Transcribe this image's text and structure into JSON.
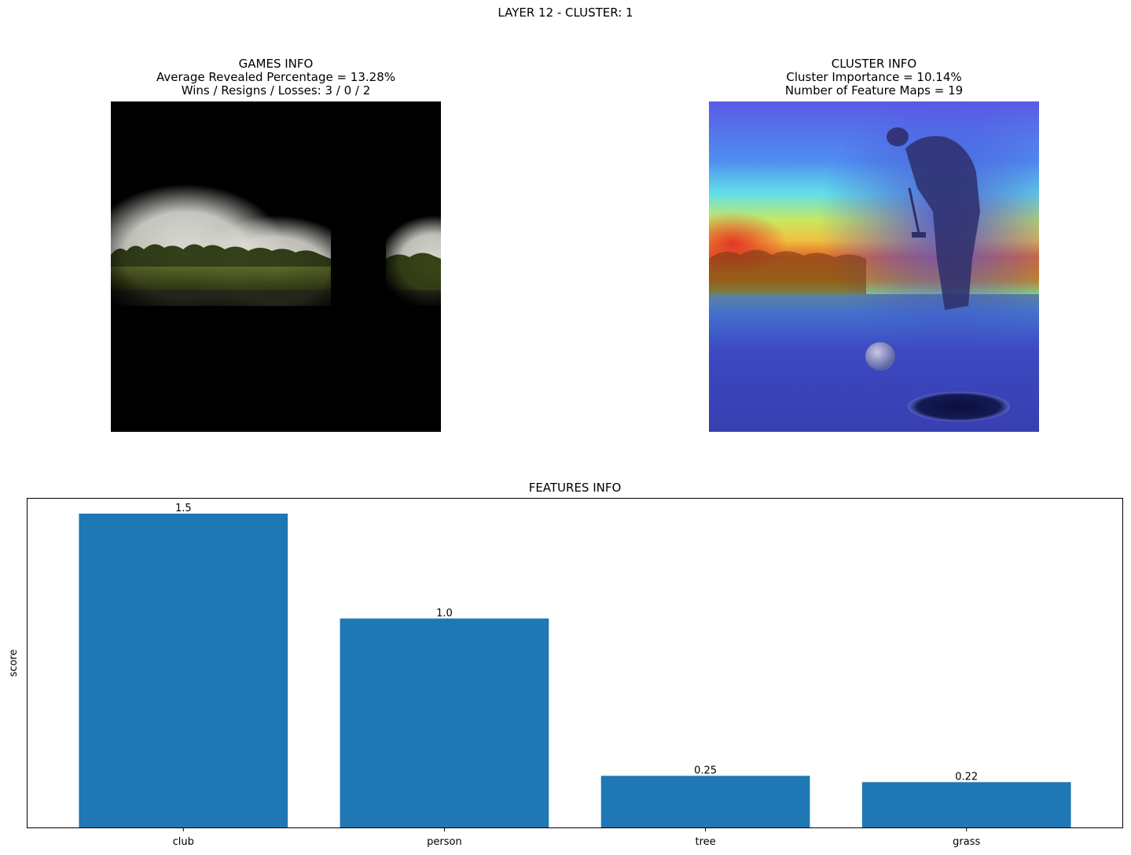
{
  "suptitle": "LAYER 12 - CLUSTER: 1",
  "games_info": {
    "title": "GAMES INFO",
    "avg_revealed": "Average Revealed Percentage = 13.28%",
    "record": "Wins / Resigns / Losses: 3 / 0 / 2"
  },
  "cluster_info": {
    "title": "CLUSTER INFO",
    "importance": "Cluster Importance = 10.14%",
    "feature_maps": "Number of Feature Maps = 19"
  },
  "colors": {
    "bar": "#1f77b4",
    "axis": "#000000"
  },
  "chart_data": {
    "type": "bar",
    "title": "FEATURES INFO",
    "xlabel": "",
    "ylabel": "score",
    "categories": [
      "club",
      "person",
      "tree",
      "grass"
    ],
    "values": [
      1.5,
      1.0,
      0.25,
      0.22
    ],
    "value_labels": [
      "1.5",
      "1.0",
      "0.25",
      "0.22"
    ],
    "ylim": [
      0,
      1.575
    ],
    "grid": false,
    "y_ticks_visible": false
  }
}
